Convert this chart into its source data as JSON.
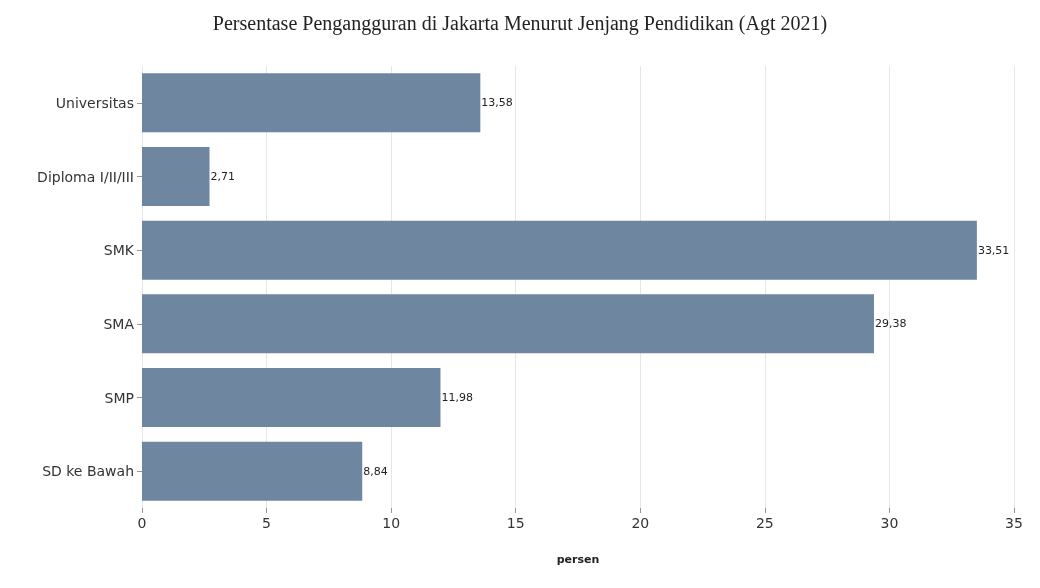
{
  "chart_data": {
    "type": "bar",
    "orientation": "horizontal",
    "title": "Persentase Pengangguran di Jakarta Menurut Jenjang Pendidikan (Agt 2021)",
    "xlabel": "persen",
    "categories": [
      "Universitas",
      "Diploma I/II/III",
      "SMK",
      "SMA",
      "SMP",
      "SD ke Bawah"
    ],
    "values": [
      13.58,
      2.71,
      33.51,
      29.38,
      11.98,
      8.84
    ],
    "value_labels": [
      "13,58",
      "2,71",
      "33,51",
      "29,38",
      "11,98",
      "8,84"
    ],
    "color": "#6f86a0",
    "xlim": [
      0,
      35
    ],
    "xticks": [
      0,
      5,
      10,
      15,
      20,
      25,
      30,
      35
    ],
    "grid": "x"
  }
}
